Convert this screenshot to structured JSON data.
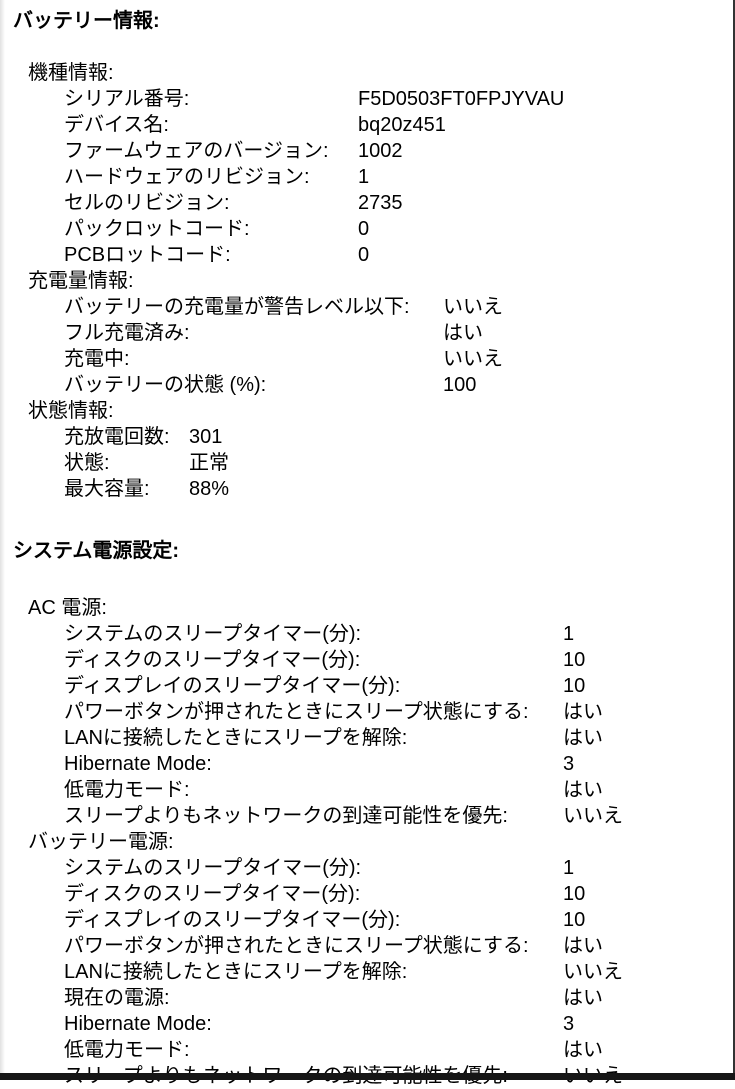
{
  "colors": {
    "text": "#000000",
    "background": "#ffffff"
  },
  "report": {
    "battery_title": "バッテリー情報:",
    "power_title": "システム電源設定:"
  },
  "battery_sections": [
    {
      "id": "model-info",
      "name": "機種情報:",
      "rows": [
        {
          "label": "シリアル番号:",
          "value": "F5D0503FT0FPJYVAU"
        },
        {
          "label": "デバイス名:",
          "value": "bq20z451"
        },
        {
          "label": "ファームウェアのバージョン:",
          "value": "1002"
        },
        {
          "label": "ハードウェアのリビジョン:",
          "value": "1"
        },
        {
          "label": "セルのリビジョン:",
          "value": "2735"
        },
        {
          "label": "パックロットコード:",
          "value": "0"
        },
        {
          "label": "PCBロットコード:",
          "value": "0"
        }
      ]
    },
    {
      "id": "charge-info",
      "name": "充電量情報:",
      "rows": [
        {
          "label": "バッテリーの充電量が警告レベル以下:",
          "value": "いいえ"
        },
        {
          "label": "フル充電済み:",
          "value": "はい"
        },
        {
          "label": "充電中:",
          "value": "いいえ"
        },
        {
          "label": "バッテリーの状態 (%):",
          "value": "100"
        }
      ]
    },
    {
      "id": "state-info",
      "name": "状態情報:",
      "rows": [
        {
          "label": "充放電回数:",
          "value": "301"
        },
        {
          "label": "状態:",
          "value": "正常"
        },
        {
          "label": "最大容量:",
          "value": "88%"
        }
      ]
    }
  ],
  "power_sections": [
    {
      "id": "ac-power",
      "name": "AC 電源:",
      "rows": [
        {
          "label": "システムのスリープタイマー(分):",
          "value": "1"
        },
        {
          "label": "ディスクのスリープタイマー(分):",
          "value": "10"
        },
        {
          "label": "ディスプレイのスリープタイマー(分):",
          "value": "10"
        },
        {
          "label": "パワーボタンが押されたときにスリープ状態にする:",
          "value": "はい"
        },
        {
          "label": "LANに接続したときにスリープを解除:",
          "value": "はい"
        },
        {
          "label": "Hibernate Mode:",
          "value": "3"
        },
        {
          "label": "低電力モード:",
          "value": "はい"
        },
        {
          "label": "スリープよりもネットワークの到達可能性を優先:",
          "value": "いいえ"
        }
      ]
    },
    {
      "id": "battery-power",
      "name": "バッテリー電源:",
      "rows": [
        {
          "label": "システムのスリープタイマー(分):",
          "value": "1"
        },
        {
          "label": "ディスクのスリープタイマー(分):",
          "value": "10"
        },
        {
          "label": "ディスプレイのスリープタイマー(分):",
          "value": "10"
        },
        {
          "label": "パワーボタンが押されたときにスリープ状態にする:",
          "value": "はい"
        },
        {
          "label": "LANに接続したときにスリープを解除:",
          "value": "いいえ"
        },
        {
          "label": "現在の電源:",
          "value": "はい"
        },
        {
          "label": "Hibernate Mode:",
          "value": "3"
        },
        {
          "label": "低電力モード:",
          "value": "はい"
        },
        {
          "label": "スリープよりもネットワークの到達可能性を優先:",
          "value": "いいえ"
        }
      ]
    }
  ]
}
